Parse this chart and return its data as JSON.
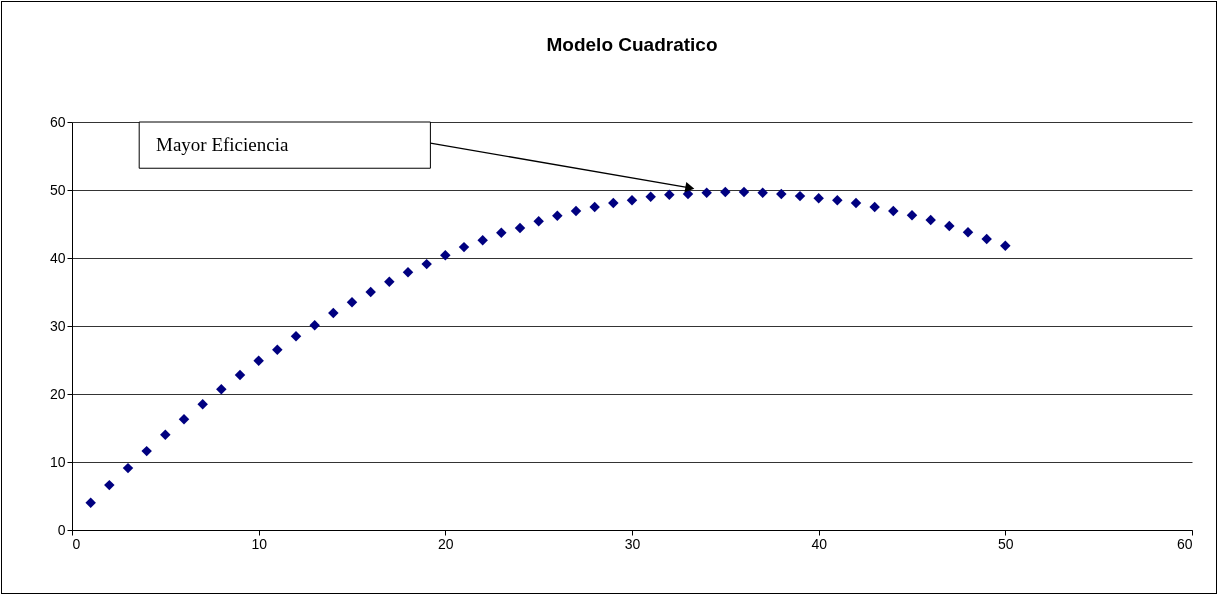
{
  "chart_data": {
    "type": "scatter",
    "title": "Modelo Cuadratico",
    "x": [
      1,
      2,
      3,
      4,
      5,
      6,
      7,
      8,
      9,
      10,
      11,
      12,
      13,
      14,
      15,
      16,
      17,
      18,
      19,
      20,
      21,
      22,
      23,
      24,
      25,
      26,
      27,
      28,
      29,
      30,
      31,
      32,
      33,
      34,
      35,
      36,
      37,
      38,
      39,
      40,
      41,
      42,
      43,
      44,
      45,
      46,
      47,
      48,
      49,
      50
    ],
    "series": [
      {
        "color": "#000080",
        "values": [
          4,
          6.6,
          9.1,
          11.6,
          14,
          16.3,
          18.5,
          20.7,
          22.8,
          24.9,
          26.5,
          28.5,
          30.1,
          31.9,
          33.5,
          35,
          36.5,
          37.9,
          39.1,
          40.4,
          41.6,
          42.6,
          43.7,
          44.4,
          45.4,
          46.2,
          46.9,
          47.5,
          48.1,
          48.5,
          49,
          49.3,
          49.4,
          49.6,
          49.7,
          49.7,
          49.6,
          49.4,
          49.1,
          48.8,
          48.5,
          48.1,
          47.5,
          46.9,
          46.3,
          45.6,
          44.7,
          43.8,
          42.8,
          41.8
        ]
      }
    ],
    "marker": "diamond",
    "xlim": [
      0,
      60
    ],
    "xticks": [
      0,
      10,
      20,
      30,
      40,
      50,
      60
    ],
    "ylim": [
      0,
      60
    ],
    "yticks": [
      0,
      10,
      20,
      30,
      40,
      50,
      60
    ],
    "grid": "y",
    "annotations": [
      "Mayor Eficiencia"
    ]
  }
}
